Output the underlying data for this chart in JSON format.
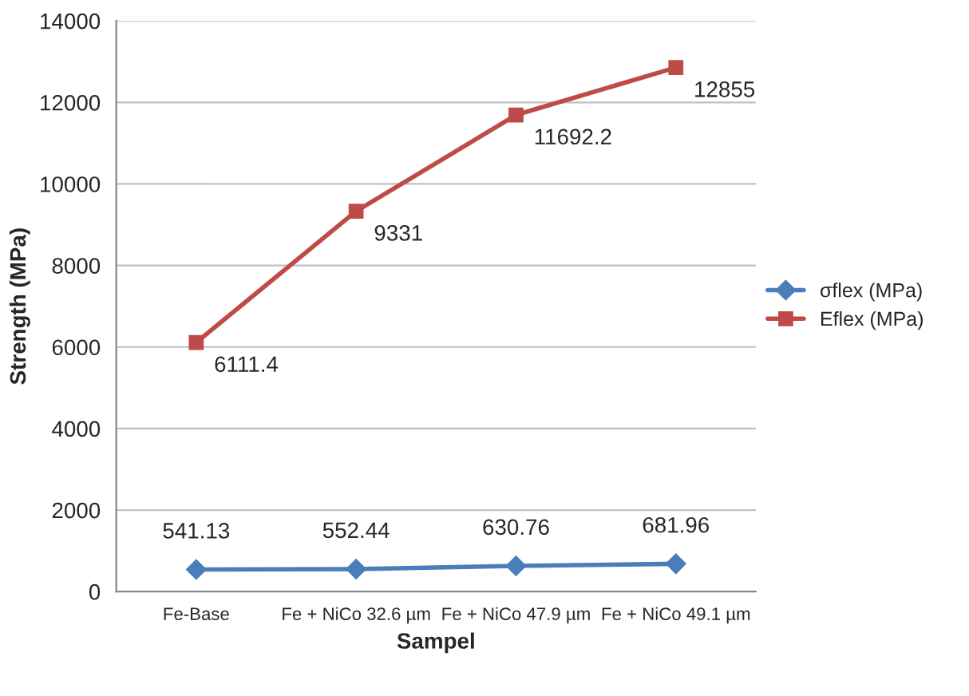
{
  "chart_data": {
    "type": "line",
    "xlabel": "Sampel",
    "ylabel": "Strength (MPa)",
    "categories": [
      "Fe-Base",
      "Fe + NiCo 32.6 µm",
      "Fe + NiCo 47.9 µm",
      "Fe + NiCo 49.1 µm"
    ],
    "series": [
      {
        "name": "σflex (MPa)",
        "color": "#4a7ebb",
        "marker": "diamond",
        "values": [
          541.13,
          552.44,
          630.76,
          681.96
        ]
      },
      {
        "name": "Eflex (MPa)",
        "color": "#be4b48",
        "marker": "square",
        "values": [
          6111.4,
          9331,
          11692.2,
          12855
        ]
      }
    ],
    "ylim": [
      0,
      14000
    ],
    "yticks": [
      0,
      2000,
      4000,
      6000,
      8000,
      10000,
      12000,
      14000
    ],
    "grid": "y",
    "legend": "right",
    "data_labels": true
  }
}
